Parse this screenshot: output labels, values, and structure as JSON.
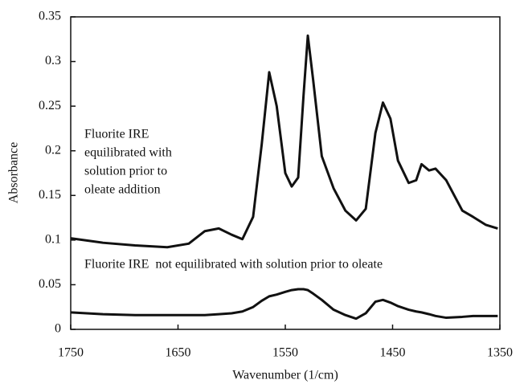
{
  "chart_data": {
    "type": "line",
    "xlabel": "Wavenumber (1/cm)",
    "ylabel": "Absorbance",
    "annotations": [
      {
        "lines": [
          "Fluorite IRE",
          "equilibrated with",
          "solution prior to",
          "oleate addition"
        ]
      },
      {
        "lines": [
          "Fluorite IRE  not equilibrated with solution prior to oleate"
        ]
      }
    ],
    "x": [
      1750,
      1720,
      1690,
      1660,
      1640,
      1625,
      1612,
      1600,
      1590,
      1580,
      1572,
      1565,
      1558,
      1550,
      1544,
      1538,
      1533,
      1529,
      1524,
      1516,
      1505,
      1494,
      1484,
      1475,
      1466,
      1459,
      1452,
      1445,
      1435,
      1428,
      1423,
      1416,
      1410,
      1400,
      1385,
      1375,
      1363,
      1352
    ],
    "series": [
      {
        "color": "#111111",
        "values": [
          0.102,
          0.097,
          0.094,
          0.092,
          0.096,
          0.11,
          0.113,
          0.106,
          0.101,
          0.126,
          0.207,
          0.288,
          0.25,
          0.175,
          0.16,
          0.17,
          0.262,
          0.329,
          0.279,
          0.194,
          0.158,
          0.133,
          0.122,
          0.135,
          0.22,
          0.254,
          0.236,
          0.189,
          0.164,
          0.167,
          0.185,
          0.178,
          0.18,
          0.167,
          0.133,
          0.126,
          0.117,
          0.113
        ]
      },
      {
        "color": "#111111",
        "values": [
          0.019,
          0.017,
          0.016,
          0.016,
          0.016,
          0.016,
          0.017,
          0.018,
          0.02,
          0.025,
          0.032,
          0.037,
          0.039,
          0.042,
          0.044,
          0.045,
          0.045,
          0.044,
          0.04,
          0.033,
          0.022,
          0.016,
          0.012,
          0.018,
          0.031,
          0.033,
          0.03,
          0.026,
          0.022,
          0.02,
          0.019,
          0.017,
          0.015,
          0.013,
          0.014,
          0.015,
          0.015,
          0.015
        ]
      }
    ],
    "xlim": [
      1750,
      1350
    ],
    "xticks": [
      1750,
      1650,
      1550,
      1450,
      1350
    ],
    "ylim": [
      0,
      0.35
    ],
    "yticks": [
      0,
      0.05,
      0.1,
      0.15,
      0.2,
      0.25,
      0.3,
      0.35
    ],
    "grid": false
  }
}
